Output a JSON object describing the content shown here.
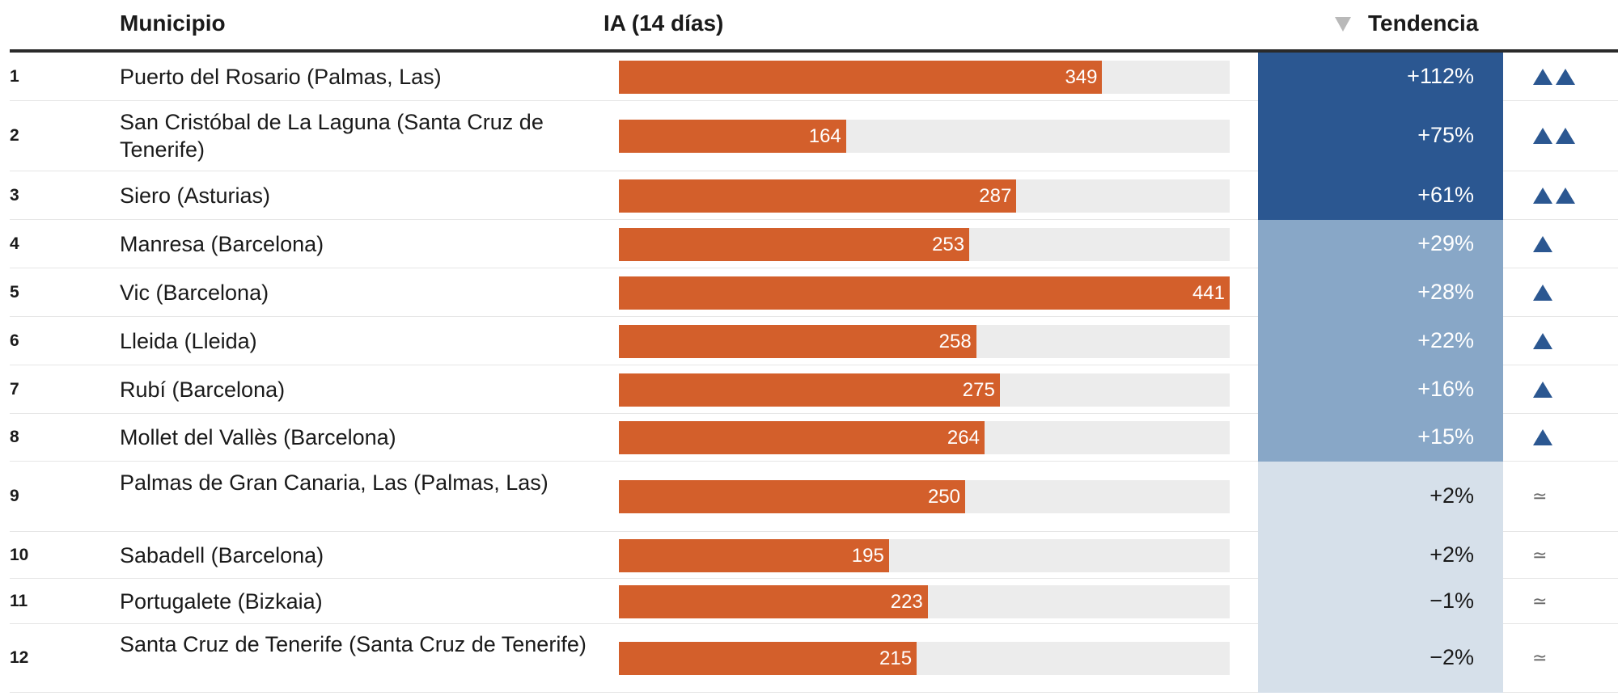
{
  "chart_data": {
    "type": "table",
    "columns": [
      "",
      "Municipio",
      "IA (14 días)",
      "Tendencia"
    ],
    "sort": {
      "column": "Tendencia",
      "direction": "descending"
    },
    "bar_max": 441,
    "colors": {
      "bar": "#d35f2b",
      "track": "#ececec",
      "trend_strong": "#2b5791",
      "trend_moderate": "#88a7c7",
      "trend_flat": "#d6e0ea",
      "arrow": "#2b5791"
    },
    "rows": [
      {
        "rank": "1",
        "municipio": "Puerto del Rosario (Palmas, Las)",
        "ia": 349,
        "tendencia": "+112%",
        "level": "strong",
        "arrows": 2
      },
      {
        "rank": "2",
        "municipio": "San Cristóbal de La Laguna (Santa Cruz de Tenerife)",
        "ia": 164,
        "tendencia": "+75%",
        "level": "strong",
        "arrows": 2
      },
      {
        "rank": "3",
        "municipio": "Siero (Asturias)",
        "ia": 287,
        "tendencia": "+61%",
        "level": "strong",
        "arrows": 2
      },
      {
        "rank": "4",
        "municipio": "Manresa (Barcelona)",
        "ia": 253,
        "tendencia": "+29%",
        "level": "moderate",
        "arrows": 1
      },
      {
        "rank": "5",
        "municipio": "Vic (Barcelona)",
        "ia": 441,
        "tendencia": "+28%",
        "level": "moderate",
        "arrows": 1
      },
      {
        "rank": "6",
        "municipio": "Lleida (Lleida)",
        "ia": 258,
        "tendencia": "+22%",
        "level": "moderate",
        "arrows": 1
      },
      {
        "rank": "7",
        "municipio": "Rubí (Barcelona)",
        "ia": 275,
        "tendencia": "+16%",
        "level": "moderate",
        "arrows": 1
      },
      {
        "rank": "8",
        "municipio": "Mollet del Vallès (Barcelona)",
        "ia": 264,
        "tendencia": "+15%",
        "level": "moderate",
        "arrows": 1
      },
      {
        "rank": "9",
        "municipio": "Palmas de Gran Canaria, Las (Palmas, Las)",
        "ia": 250,
        "tendencia": "+2%",
        "level": "flat",
        "arrows": 0
      },
      {
        "rank": "10",
        "municipio": "Sabadell (Barcelona)",
        "ia": 195,
        "tendencia": "+2%",
        "level": "flat",
        "arrows": 0
      },
      {
        "rank": "11",
        "municipio": "Portugalete (Bizkaia)",
        "ia": 223,
        "tendencia": "−1%",
        "level": "flat",
        "arrows": 0
      },
      {
        "rank": "12",
        "municipio": "Santa Cruz de Tenerife (Santa Cruz de Tenerife)",
        "ia": 215,
        "tendencia": "−2%",
        "level": "flat",
        "arrows": 0
      }
    ],
    "flat_symbol": "≃"
  }
}
